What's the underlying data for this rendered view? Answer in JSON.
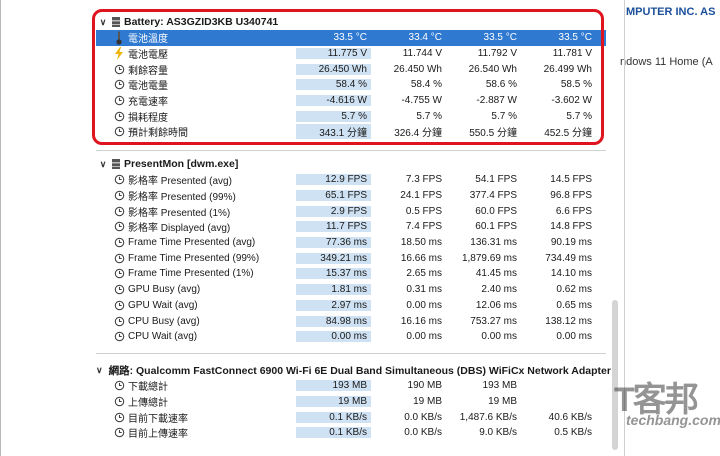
{
  "right_pane": {
    "line1": "MPUTER INC. AS",
    "line2": "ndows 11 Home (A"
  },
  "sections": [
    {
      "title": "Battery: AS3GZID3KB U340741",
      "rows": [
        {
          "icon": "thermometer-icon",
          "label": "電池溫度",
          "v": [
            "33.5 °C",
            "33.4 °C",
            "33.5 °C",
            "33.5 °C"
          ],
          "selected": true
        },
        {
          "icon": "lightning-icon",
          "label": "電池電壓",
          "v": [
            "11.775 V",
            "11.744 V",
            "11.792 V",
            "11.781 V"
          ]
        },
        {
          "icon": "clock-icon",
          "label": "剩餘容量",
          "v": [
            "26.450 Wh",
            "26.450 Wh",
            "26.540 Wh",
            "26.499 Wh"
          ]
        },
        {
          "icon": "clock-icon",
          "label": "電池電量",
          "v": [
            "58.4 %",
            "58.4 %",
            "58.6 %",
            "58.5 %"
          ]
        },
        {
          "icon": "clock-icon",
          "label": "充電速率",
          "v": [
            "-4.616 W",
            "-4.755 W",
            "-2.887 W",
            "-3.602 W"
          ]
        },
        {
          "icon": "clock-icon",
          "label": "損耗程度",
          "v": [
            "5.7 %",
            "5.7 %",
            "5.7 %",
            "5.7 %"
          ]
        },
        {
          "icon": "clock-icon",
          "label": "預計剩餘時間",
          "v": [
            "343.1 分鐘",
            "326.4 分鐘",
            "550.5 分鐘",
            "452.5 分鐘"
          ]
        }
      ]
    },
    {
      "title": "PresentMon [dwm.exe]",
      "rows": [
        {
          "icon": "clock-icon",
          "label": "影格率 Presented (avg)",
          "v": [
            "12.9 FPS",
            "7.3 FPS",
            "54.1 FPS",
            "14.5 FPS"
          ]
        },
        {
          "icon": "clock-icon",
          "label": "影格率 Presented (99%)",
          "v": [
            "65.1 FPS",
            "24.1 FPS",
            "377.4 FPS",
            "96.8 FPS"
          ]
        },
        {
          "icon": "clock-icon",
          "label": "影格率 Presented (1%)",
          "v": [
            "2.9 FPS",
            "0.5 FPS",
            "60.0 FPS",
            "6.6 FPS"
          ]
        },
        {
          "icon": "clock-icon",
          "label": "影格率 Displayed (avg)",
          "v": [
            "11.7 FPS",
            "7.4 FPS",
            "60.1 FPS",
            "14.8 FPS"
          ]
        },
        {
          "icon": "clock-icon",
          "label": "Frame Time Presented (avg)",
          "v": [
            "77.36 ms",
            "18.50 ms",
            "136.31 ms",
            "90.19 ms"
          ]
        },
        {
          "icon": "clock-icon",
          "label": "Frame Time Presented (99%)",
          "v": [
            "349.21 ms",
            "16.66 ms",
            "1,879.69 ms",
            "734.49 ms"
          ]
        },
        {
          "icon": "clock-icon",
          "label": "Frame Time Presented (1%)",
          "v": [
            "15.37 ms",
            "2.65 ms",
            "41.45 ms",
            "14.10 ms"
          ]
        },
        {
          "icon": "clock-icon",
          "label": "GPU Busy (avg)",
          "v": [
            "1.81 ms",
            "0.31 ms",
            "2.40 ms",
            "0.62 ms"
          ]
        },
        {
          "icon": "clock-icon",
          "label": "GPU Wait (avg)",
          "v": [
            "2.97 ms",
            "0.00 ms",
            "12.06 ms",
            "0.65 ms"
          ]
        },
        {
          "icon": "clock-icon",
          "label": "CPU Busy (avg)",
          "v": [
            "84.98 ms",
            "16.16 ms",
            "753.27 ms",
            "138.12 ms"
          ]
        },
        {
          "icon": "clock-icon",
          "label": "CPU Wait (avg)",
          "v": [
            "0.00 ms",
            "0.00 ms",
            "0.00 ms",
            "0.00 ms"
          ]
        }
      ]
    },
    {
      "title": "網路: Qualcomm FastConnect 6900 Wi-Fi 6E Dual Band Simultaneous (DBS) WiFiCx Network Adapter",
      "rows": [
        {
          "icon": "clock-icon",
          "label": "下載總計",
          "v": [
            "193 MB",
            "190 MB",
            "193 MB",
            ""
          ]
        },
        {
          "icon": "clock-icon",
          "label": "上傳總計",
          "v": [
            "19 MB",
            "19 MB",
            "19 MB",
            ""
          ]
        },
        {
          "icon": "clock-icon",
          "label": "目前下載速率",
          "v": [
            "0.1 KB/s",
            "0.0 KB/s",
            "1,487.6 KB/s",
            "40.6 KB/s"
          ]
        },
        {
          "icon": "clock-icon",
          "label": "目前上傳速率",
          "v": [
            "0.1 KB/s",
            "0.0 KB/s",
            "9.0 KB/s",
            "0.5 KB/s"
          ]
        }
      ]
    }
  ],
  "watermark": {
    "brand": "T客邦",
    "site": "techbang.com"
  }
}
